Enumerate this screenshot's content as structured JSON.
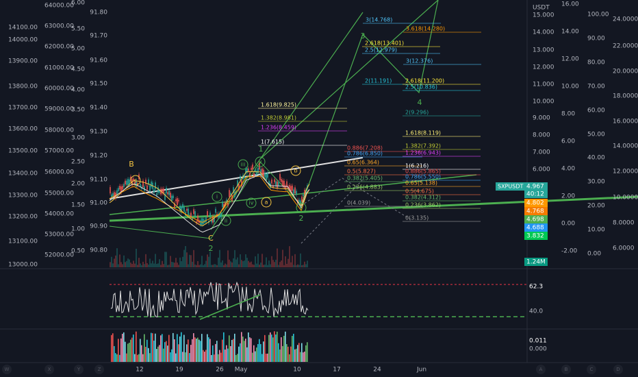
{
  "left_axes": [
    [
      "14100.00",
      "14000.00",
      "13900.00",
      "13800.00",
      "13700.00",
      "13600.00",
      "13500.00",
      "13400.00",
      "13300.00",
      "13200.00",
      "13100.00",
      "13000.00"
    ],
    [
      "64000.00",
      "63000.00",
      "62000.00",
      "61000.00",
      "60000.00",
      "59000.00",
      "58000.00",
      "57000.00",
      "56000.00",
      "55000.00",
      "54000.00",
      "53000.00",
      "52000.00"
    ],
    [
      "6.00",
      "5.50",
      "5.00",
      "4.50",
      "4.00",
      "3.50",
      "3.00",
      "2.50",
      "2.00",
      "1.50",
      "1.00",
      "0.50"
    ],
    [
      "91.80",
      "91.70",
      "91.60",
      "91.50",
      "91.40",
      "91.30",
      "91.20",
      "91.10",
      "91.00",
      "90.90",
      "90.80"
    ]
  ],
  "right_axes": {
    "unit": "USDT",
    "cols": [
      [
        "15.000",
        "14.000",
        "13.000",
        "12.000",
        "11.000",
        "10.000",
        "9.000",
        "8.000",
        "7.000",
        "6.000"
      ],
      [
        "16.00",
        "14.00",
        "12.00",
        "10.00",
        "8.00",
        "6.00",
        "4.00",
        "2.00",
        "0.00",
        "-2.00"
      ],
      [
        "100.00",
        "90.00",
        "80.00",
        "70.00",
        "60.00",
        "50.00",
        "40.00",
        "30.00",
        "20.00",
        "10.00",
        "0.00"
      ],
      [
        "24.0000",
        "22.0000",
        "20.0000",
        "18.0000",
        "16.0000",
        "14.0000",
        "12.0000",
        "10.0000",
        "8.0000",
        "6.0000"
      ]
    ]
  },
  "symbol": "SXPUSDT",
  "price_tags": [
    "4.967",
    "40:12",
    "4.802",
    "4.768",
    "4.698",
    "4.688",
    "3.832",
    "1.24M"
  ],
  "rsi_labels": [
    "62.3",
    "40.0"
  ],
  "osc_labels": [
    "0.011",
    "0.000"
  ],
  "dates": [
    "12",
    "19",
    "26",
    "May",
    "10",
    "17",
    "24",
    "Jun"
  ],
  "toolbar": [
    "W",
    "X",
    "Y",
    "Z",
    "A",
    "B",
    "C",
    "D"
  ],
  "fib_labels": [
    "3(14.768)",
    "3.618(14.280)",
    "2.618(13.401)",
    "2.5(12.979)",
    "3(12.376)",
    "2(11.191)",
    "2.618(11.200)",
    "2.5(10.836)",
    "1.618(9.825)",
    "2(9.296)",
    "1.382(8.981)",
    "1.236(8.459)",
    "1.618(8.119)",
    "1(7.615)",
    "1.382(7.392)",
    "0.886(7.208)",
    "1.236(6.943)",
    "0.786(6.850)",
    "0.65(6.364)",
    "1(6.216)",
    "0.5(5.827)",
    "0.886(5.865)",
    "0.786(5.550)",
    "0.382(5.405)",
    "0.65(5.138)",
    "0.236(4.883)",
    "0.5(4.675)",
    "0.382(4.312)",
    "0(4.039)",
    "0.236(3.862)",
    "0(3.135)"
  ],
  "wave_labels": [
    "B",
    "3",
    "4",
    "1",
    "C",
    "2",
    "2"
  ],
  "circled_labels": [
    "c",
    "iii",
    "v",
    "b",
    "i",
    "ii",
    "iv",
    "a",
    "c"
  ]
}
